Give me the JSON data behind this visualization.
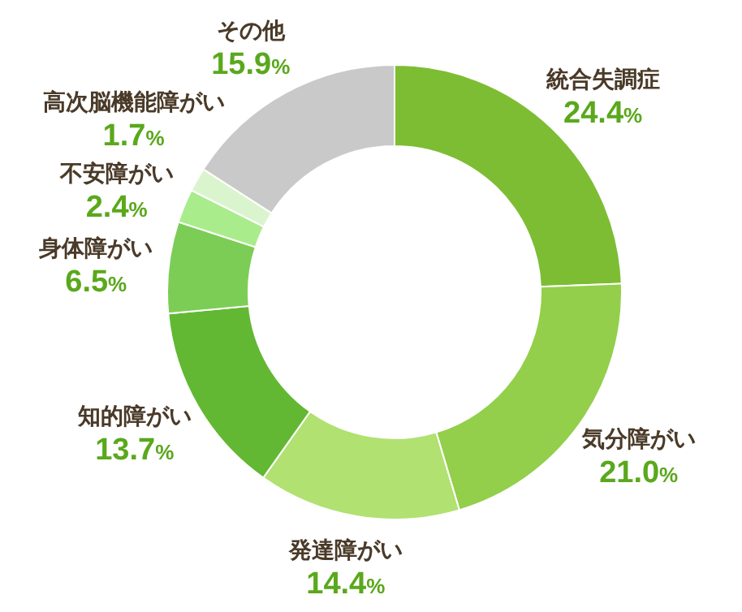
{
  "chart_data": {
    "type": "donut",
    "categories": [
      "統合失調症",
      "気分障がい",
      "発達障がい",
      "知的障がい",
      "身体障がい",
      "不安障がい",
      "高次脳機能障がい",
      "その他"
    ],
    "values": [
      24.4,
      21.0,
      14.4,
      13.7,
      6.5,
      2.4,
      1.7,
      15.9
    ],
    "colors": [
      "#7dbd33",
      "#93cf4b",
      "#b0e171",
      "#62b833",
      "#7ccd55",
      "#a9ec8c",
      "#daf5cd",
      "#c9c9c9"
    ],
    "value_labels": [
      "24.4%",
      "21.0%",
      "14.4%",
      "13.7%",
      "6.5%",
      "2.4%",
      "1.7%",
      "15.9%"
    ]
  }
}
